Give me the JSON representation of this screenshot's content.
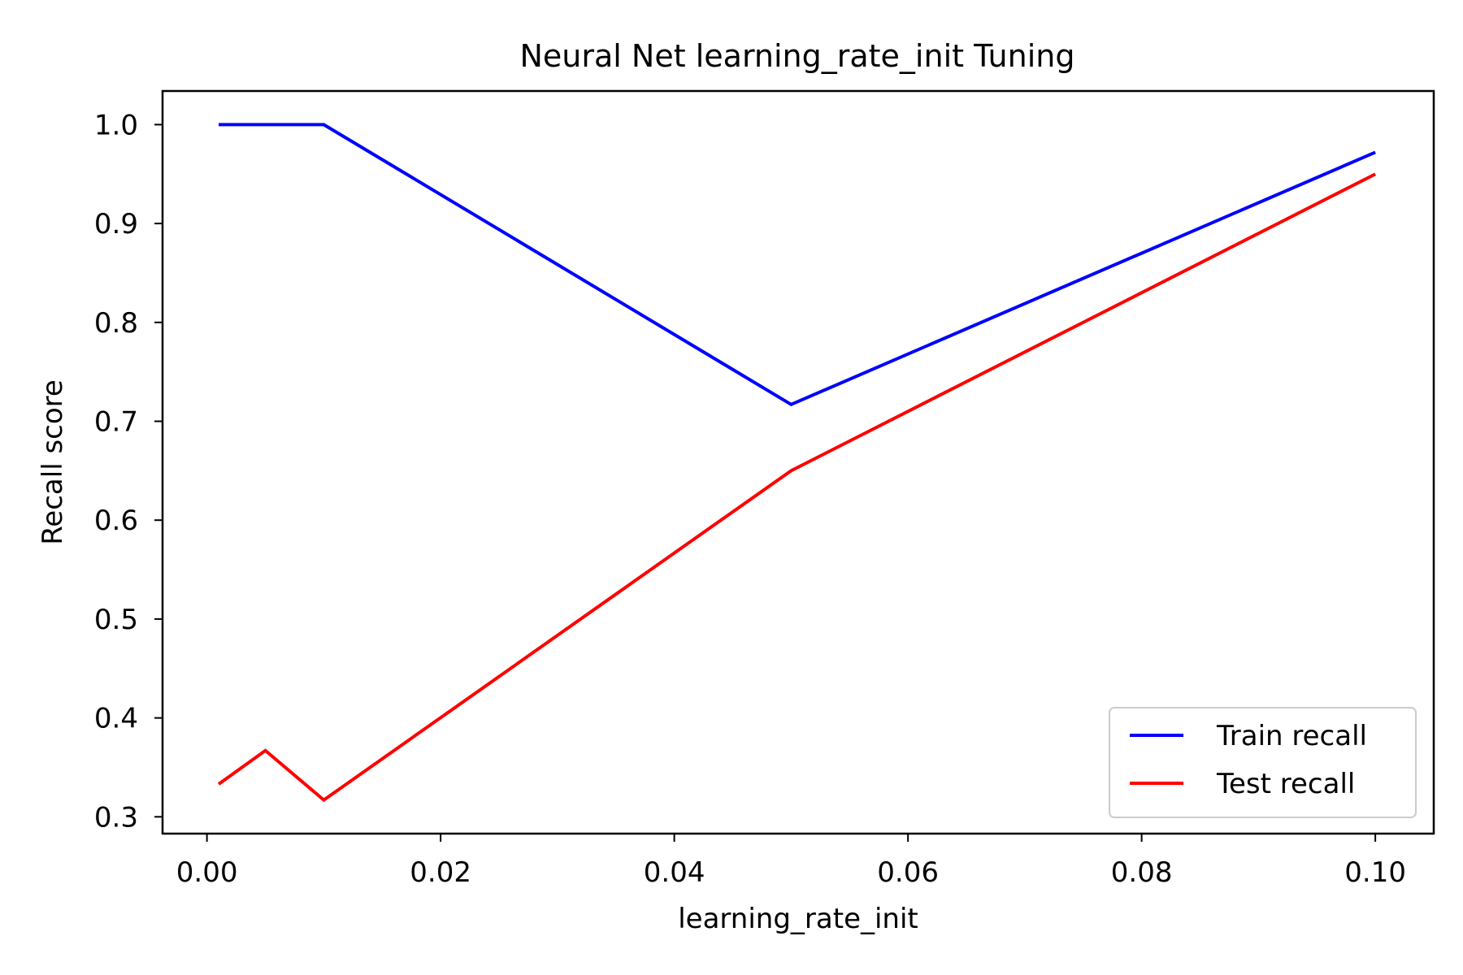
{
  "chart_data": {
    "type": "line",
    "title": "Neural Net learning_rate_init Tuning",
    "xlabel": "learning_rate_init",
    "ylabel": "Recall score",
    "xlim": [
      -0.0038,
      0.105
    ],
    "ylim": [
      0.283,
      1.034
    ],
    "xticks": [
      0.0,
      0.02,
      0.04,
      0.06,
      0.08,
      0.1
    ],
    "xtick_labels": [
      "0.00",
      "0.02",
      "0.04",
      "0.06",
      "0.08",
      "0.10"
    ],
    "yticks": [
      0.3,
      0.4,
      0.5,
      0.6,
      0.7,
      0.8,
      0.9,
      1.0
    ],
    "ytick_labels": [
      "0.3",
      "0.4",
      "0.5",
      "0.6",
      "0.7",
      "0.8",
      "0.9",
      "1.0"
    ],
    "x": [
      0.001,
      0.005,
      0.01,
      0.05,
      0.1
    ],
    "series": [
      {
        "name": "Train recall",
        "color": "#0000ff",
        "values": [
          1.0,
          1.0,
          1.0,
          0.717,
          0.972
        ]
      },
      {
        "name": "Test recall",
        "color": "#ff0000",
        "values": [
          0.333,
          0.367,
          0.317,
          0.65,
          0.95
        ]
      }
    ],
    "legend": {
      "position": "lower right",
      "labels": [
        "Train recall",
        "Test recall"
      ]
    },
    "grid": false
  }
}
